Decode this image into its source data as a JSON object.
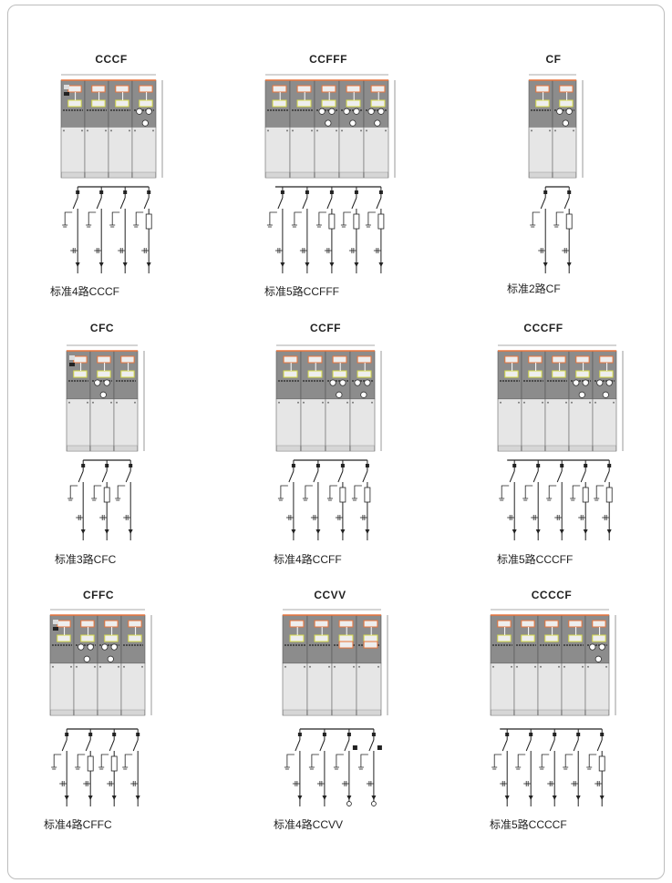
{
  "panels": [
    {
      "title": "CCCF",
      "caption": "标准4路CCCF",
      "units": "CCCF"
    },
    {
      "title": "CCFFF",
      "caption": "标准5路CCFFF",
      "units": "CCFFF"
    },
    {
      "title": "CF",
      "caption": "标准2路CF",
      "units": "CF"
    },
    {
      "title": "CFC",
      "caption": "标准3路CFC",
      "units": "CFC"
    },
    {
      "title": "CCFF",
      "caption": "标准4路CCFF",
      "units": "CCFF"
    },
    {
      "title": "CCCFF",
      "caption": "标准5路CCCFF",
      "units": "CCCFF"
    },
    {
      "title": "CFFC",
      "caption": "标准4路CFFC",
      "units": "CFFC"
    },
    {
      "title": "CCVV",
      "caption": "标准4路CCVV",
      "units": "CCVV"
    },
    {
      "title": "CCCCF",
      "caption": "标准5路CCCCF",
      "units": "CCCCF"
    }
  ],
  "colors": {
    "panel_upper": "#8c8c8c",
    "panel_lower": "#e6e6e6",
    "accent_orange": "#e8743b",
    "accent_yellow": "#d8dc4a",
    "line": "#222222"
  }
}
